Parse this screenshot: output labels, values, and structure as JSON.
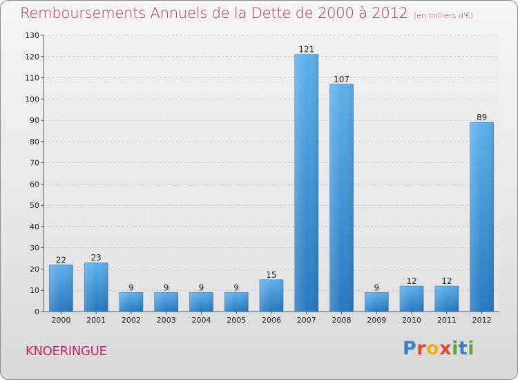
{
  "header": {
    "title": "Remboursements Annuels de la Dette de 2000 à 2012",
    "subtitle": "(en milliers d'€)"
  },
  "footer": {
    "commune": "KNOERINGUE",
    "logo_letters": [
      "P",
      "r",
      "o",
      "x",
      "i",
      "t",
      "i"
    ],
    "logo_colors": [
      "#3a7fc4",
      "#e8452c",
      "#f2b21a",
      "#e8452c",
      "#5aa634",
      "#3a7fc4",
      "#5aa634"
    ]
  },
  "chart_data": {
    "type": "bar",
    "categories": [
      "2000",
      "2001",
      "2002",
      "2003",
      "2004",
      "2005",
      "2006",
      "2007",
      "2008",
      "2009",
      "2010",
      "2011",
      "2012"
    ],
    "values": [
      22,
      23,
      9,
      9,
      9,
      9,
      15,
      121,
      107,
      9,
      12,
      12,
      89
    ],
    "data_labels": [
      "22",
      "23",
      "9",
      "9",
      "9",
      "9",
      "15",
      "121",
      "107",
      "9",
      "12",
      "12",
      "89"
    ],
    "yticks": [
      0,
      10,
      20,
      30,
      40,
      50,
      60,
      70,
      80,
      90,
      100,
      110,
      120,
      130
    ],
    "ylim": [
      0,
      130
    ],
    "grid": true,
    "bar_color": "#3d94dc"
  }
}
